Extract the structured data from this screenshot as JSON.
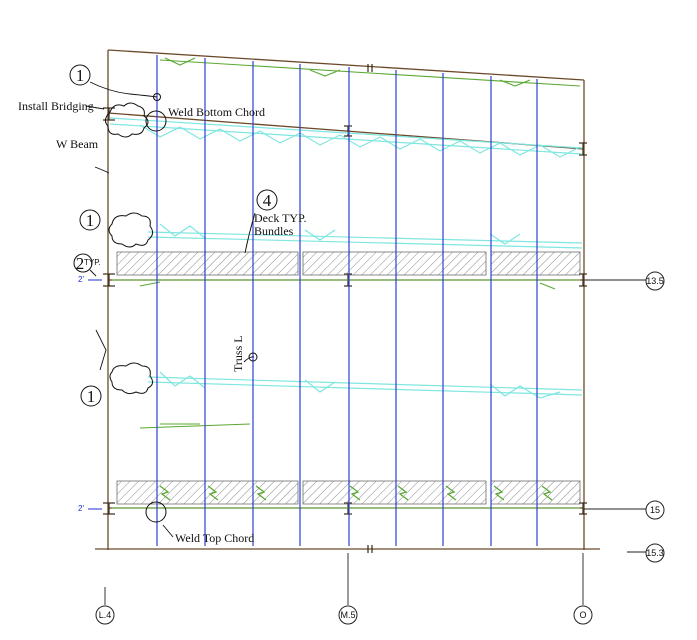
{
  "callouts": {
    "install_bridging": "Install Bridging",
    "w_beam": "W Beam",
    "weld_bottom_chord": "Weld Bottom Chord",
    "weld_top_chord": "Weld Top Chord",
    "deck_typ_line1": "Deck TYP.",
    "deck_typ_line2": "Bundles",
    "truss": "Truss L"
  },
  "sequence_bubbles": {
    "top": "1",
    "mid_left": "1",
    "lower_left": "1",
    "deck": "4",
    "dim_group": "2",
    "dim_group_sub": "TYP."
  },
  "dimensions": {
    "upper": "2'",
    "lower": "2'"
  },
  "grid_labels": {
    "col_left": "L.4",
    "col_mid": "M.5",
    "col_right": "O",
    "row_upper": "13.5",
    "row_lower": "15",
    "row_bottom": "15.3"
  },
  "colors": {
    "beam": "#6b4a2a",
    "joist": "#2b3fd6",
    "bridging": "#7fe6e0",
    "green_member": "#5aa832",
    "deck_hatch": "#9a9a9a"
  }
}
